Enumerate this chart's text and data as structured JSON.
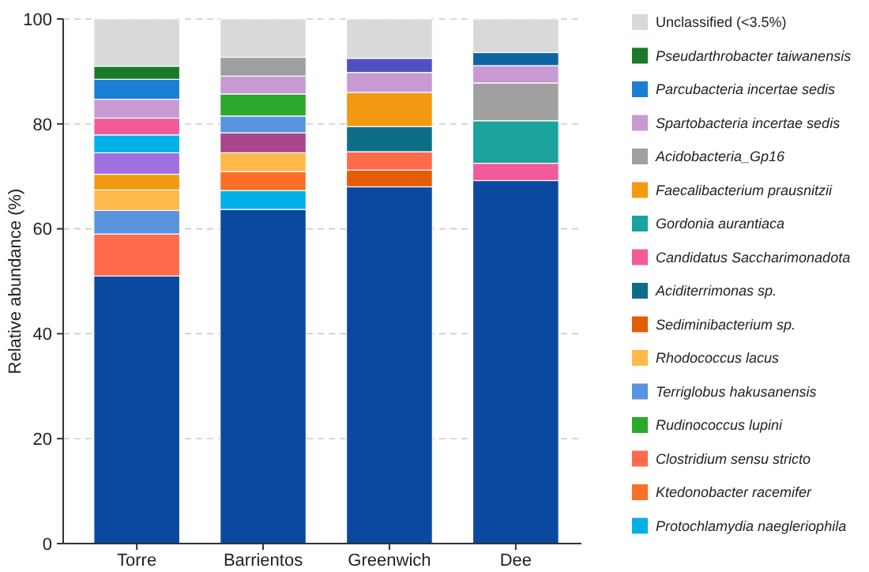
{
  "chart_data": {
    "type": "bar",
    "stacked": true,
    "ylabel": "Relative abundance (%)",
    "categories": [
      "Torre",
      "Barrientos",
      "Greenwich",
      "Dee"
    ],
    "ylim": [
      0,
      100
    ],
    "yticks": [
      0,
      20,
      40,
      60,
      80,
      100
    ],
    "grid": "y",
    "legend": "right",
    "series": [
      {
        "color": "#0b48a0",
        "values": [
          51,
          63.7,
          68,
          69.2
        ]
      },
      {
        "name": "Protochlamydia naegleriophila",
        "color": "#00b0e6",
        "values": [
          null,
          3.6,
          null,
          null
        ]
      },
      {
        "name": "Ktedonobacter racemifer",
        "color": "#fa6e28",
        "values": [
          null,
          3.6,
          null,
          null
        ]
      },
      {
        "name": "Clostridium sensu stricto",
        "color": "#ff6a4c",
        "values": [
          8,
          null,
          null,
          null
        ]
      },
      {
        "color": "#ffb84a",
        "values": [
          null,
          3.6,
          null,
          null
        ]
      },
      {
        "color": "#a8468c",
        "values": [
          null,
          3.8,
          null,
          null
        ]
      },
      {
        "color": "#5a94e0",
        "values": [
          null,
          3.2,
          null,
          null
        ]
      },
      {
        "name": "Rudinococcus lupini",
        "color": "#2ca82c",
        "values": [
          null,
          4.2,
          null,
          null
        ]
      },
      {
        "name": "Terriglobus hakusanensis",
        "color": "#5a94e0",
        "values": [
          4.5,
          null,
          null,
          null
        ]
      },
      {
        "name": "Rhodococcus lacus",
        "color": "#ffb84a",
        "values": [
          3.9,
          null,
          null,
          null
        ]
      },
      {
        "name": "Sediminibacterium sp.",
        "color": "#e65c00",
        "values": [
          null,
          null,
          3.2,
          null
        ]
      },
      {
        "color": "#ff6a4c",
        "values": [
          null,
          null,
          3.5,
          null
        ]
      },
      {
        "name": "Aciditerrimonas sp.",
        "color": "#0e6e87",
        "values": [
          null,
          null,
          4.8,
          null
        ]
      },
      {
        "name": "Candidatus Saccharimonadota",
        "color": "#f25a9a",
        "values": [
          null,
          null,
          null,
          3.3
        ]
      },
      {
        "name": "Gordonia aurantiaca",
        "color": "#1aa39c",
        "values": [
          null,
          null,
          null,
          8.1
        ]
      },
      {
        "name": "Faecalibacterium prausnitzii",
        "color": "#f39a12",
        "values": [
          3,
          null,
          6.5,
          null
        ]
      },
      {
        "color": "#a070e0",
        "values": [
          4.1,
          null,
          null,
          null
        ]
      },
      {
        "color": "#00b0e6",
        "values": [
          3.4,
          null,
          null,
          null
        ]
      },
      {
        "color": "#f25a9a",
        "values": [
          3.2,
          null,
          null,
          null
        ]
      },
      {
        "name": "Acidobacteria_Gp16",
        "color": "#a0a0a0",
        "values": [
          null,
          null,
          null,
          7.2
        ]
      },
      {
        "name": "Spartobacteria incertae sedis",
        "color": "#c79ad4",
        "values": [
          3.6,
          3.4,
          3.8,
          3.3
        ]
      },
      {
        "color": "#a0a0a0",
        "values": [
          null,
          3.6,
          null,
          null
        ]
      },
      {
        "color": "#5050c0",
        "values": [
          null,
          null,
          2.7,
          null
        ]
      },
      {
        "color": "#0e64a0",
        "values": [
          null,
          null,
          null,
          2.5
        ]
      },
      {
        "name": "Parcubacteria incertae sedis",
        "color": "#1a7fd6",
        "values": [
          3.8,
          null,
          null,
          null
        ]
      },
      {
        "name": "Pseudarthrobacter taiwanensis",
        "color": "#1a7a2a",
        "values": [
          2.5,
          null,
          null,
          null
        ]
      },
      {
        "name": "Unclassified (<3.5%)",
        "color": "#d9d9dc",
        "values": [
          9,
          7.3,
          7.5,
          6.4
        ]
      }
    ]
  }
}
